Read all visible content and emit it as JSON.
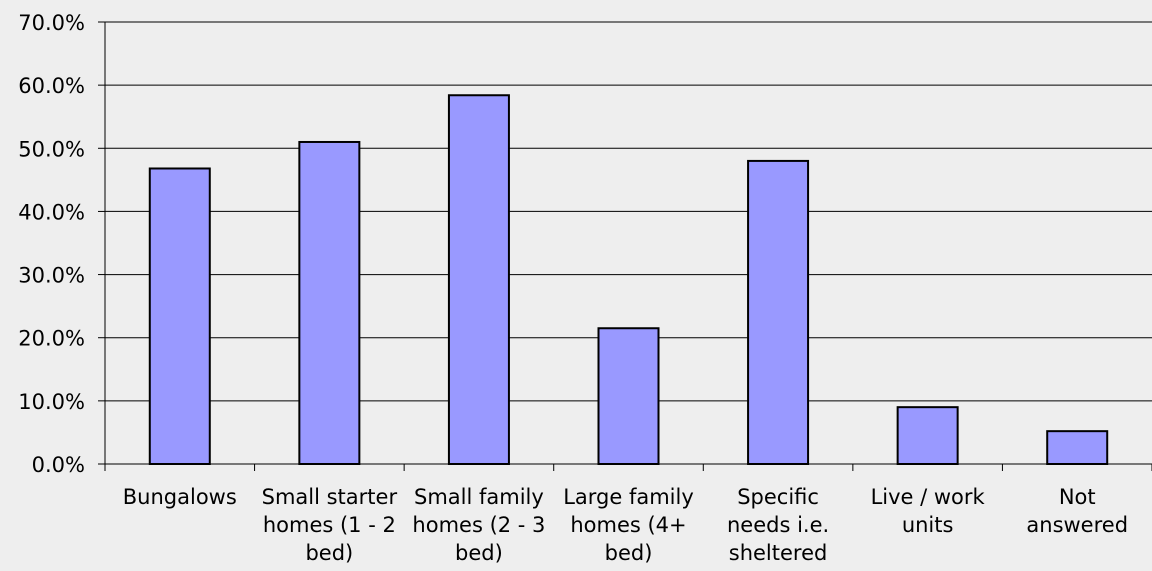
{
  "chart_data": {
    "type": "bar",
    "categories": [
      [
        "Bungalows"
      ],
      [
        "Small starter",
        "homes (1 - 2",
        "bed)"
      ],
      [
        "Small family",
        "homes (2 - 3",
        "bed)"
      ],
      [
        "Large family",
        "homes (4+",
        "bed)"
      ],
      [
        "Specific",
        "needs i.e.",
        "sheltered"
      ],
      [
        "Live / work",
        "units"
      ],
      [
        "Not",
        "answered"
      ]
    ],
    "values": [
      46.8,
      51.0,
      58.4,
      21.5,
      48.0,
      9.0,
      5.2
    ],
    "yticks": [
      "0.0%",
      "10.0%",
      "20.0%",
      "30.0%",
      "40.0%",
      "50.0%",
      "60.0%",
      "70.0%"
    ],
    "ylim": [
      0,
      70
    ],
    "grid": true,
    "colors": {
      "bar_fill": "#9999ff",
      "bar_stroke": "#000000",
      "background": "#eeeeee",
      "gridline": "#000000"
    }
  }
}
